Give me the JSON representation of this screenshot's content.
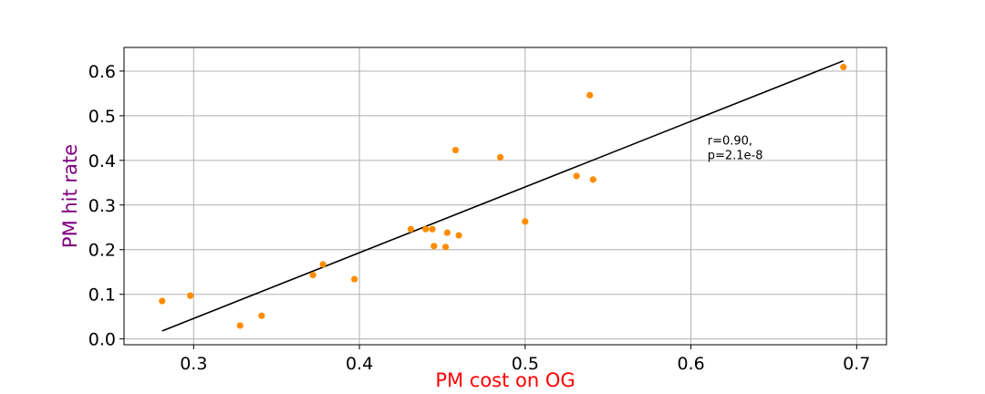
{
  "chart_data": {
    "type": "scatter",
    "title": "",
    "xlabel": "PM cost on OG",
    "ylabel": "PM hit rate",
    "xlabel_color": "#ff0000",
    "ylabel_color": "#800080",
    "xlim": [
      0.258,
      0.718
    ],
    "ylim": [
      -0.013,
      0.653
    ],
    "x_ticks": [
      0.3,
      0.4,
      0.5,
      0.6,
      0.7
    ],
    "x_tick_labels": [
      "0.3",
      "0.4",
      "0.5",
      "0.6",
      "0.7"
    ],
    "y_ticks": [
      0.0,
      0.1,
      0.2,
      0.3,
      0.4,
      0.5,
      0.6
    ],
    "y_tick_labels": [
      "0.0",
      "0.1",
      "0.2",
      "0.3",
      "0.4",
      "0.5",
      "0.6"
    ],
    "grid": true,
    "point_color": "#ff8c00",
    "line_color": "#000000",
    "points": [
      {
        "x": 0.281,
        "y": 0.085
      },
      {
        "x": 0.298,
        "y": 0.097
      },
      {
        "x": 0.328,
        "y": 0.03
      },
      {
        "x": 0.341,
        "y": 0.052
      },
      {
        "x": 0.372,
        "y": 0.143
      },
      {
        "x": 0.378,
        "y": 0.167
      },
      {
        "x": 0.397,
        "y": 0.134
      },
      {
        "x": 0.431,
        "y": 0.246
      },
      {
        "x": 0.44,
        "y": 0.246
      },
      {
        "x": 0.444,
        "y": 0.246
      },
      {
        "x": 0.445,
        "y": 0.208
      },
      {
        "x": 0.452,
        "y": 0.206
      },
      {
        "x": 0.453,
        "y": 0.238
      },
      {
        "x": 0.458,
        "y": 0.423
      },
      {
        "x": 0.46,
        "y": 0.232
      },
      {
        "x": 0.485,
        "y": 0.407
      },
      {
        "x": 0.5,
        "y": 0.263
      },
      {
        "x": 0.531,
        "y": 0.365
      },
      {
        "x": 0.539,
        "y": 0.546
      },
      {
        "x": 0.541,
        "y": 0.357
      },
      {
        "x": 0.692,
        "y": 0.609
      }
    ],
    "fit_line": {
      "x": [
        0.281,
        0.692
      ],
      "y": [
        0.018,
        0.623
      ]
    },
    "annotation": {
      "lines": [
        "r=0.90,",
        "p=2.1e-8"
      ],
      "x": 0.61,
      "y": 0.435
    }
  }
}
